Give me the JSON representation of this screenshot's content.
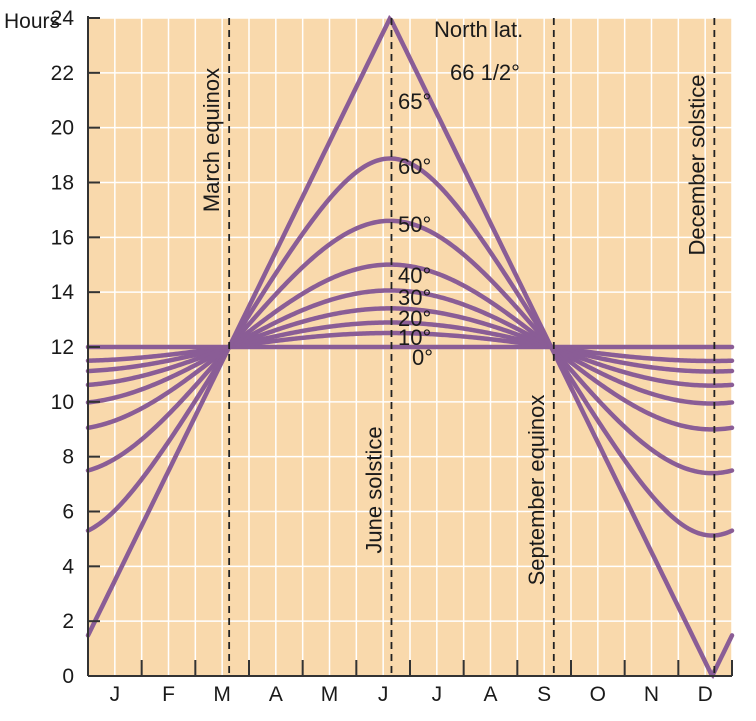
{
  "chart_data": {
    "type": "line",
    "title": "",
    "ylabel": "Hours",
    "xlabel": "",
    "ylim": [
      0,
      24
    ],
    "yticks": [
      0,
      2,
      4,
      6,
      8,
      10,
      12,
      14,
      16,
      18,
      20,
      22,
      24
    ],
    "month_labels": [
      "J",
      "F",
      "M",
      "A",
      "M",
      "J",
      "J",
      "A",
      "S",
      "O",
      "N",
      "D"
    ],
    "grid": true,
    "background_color": "#f9d9ac",
    "grid_color": "#ffffff",
    "line_color": "#8a5d96",
    "x_domain_days": [
      0,
      365
    ],
    "equinox_day": 80,
    "events": [
      {
        "name": "March equinox",
        "day": 80
      },
      {
        "name": "June solstice",
        "day": 172
      },
      {
        "name": "September equinox",
        "day": 264
      },
      {
        "name": "December solstice",
        "day": 355
      }
    ],
    "legend_title": "North lat.",
    "series": [
      {
        "name": "0°",
        "latitude": 0,
        "max_hours": 12.0
      },
      {
        "name": "10°",
        "latitude": 10,
        "max_hours": 12.8
      },
      {
        "name": "20°",
        "latitude": 20,
        "max_hours": 13.4
      },
      {
        "name": "30°",
        "latitude": 30,
        "max_hours": 14.2
      },
      {
        "name": "40°",
        "latitude": 40,
        "max_hours": 15.2
      },
      {
        "name": "50°",
        "latitude": 50,
        "max_hours": 16.6
      },
      {
        "name": "60°",
        "latitude": 60,
        "max_hours": 18.8
      },
      {
        "name": "65°",
        "latitude": 65,
        "max_hours": 21.4
      },
      {
        "name": "66 1/2°",
        "latitude": 66.5,
        "max_hours": 24.0
      }
    ]
  }
}
